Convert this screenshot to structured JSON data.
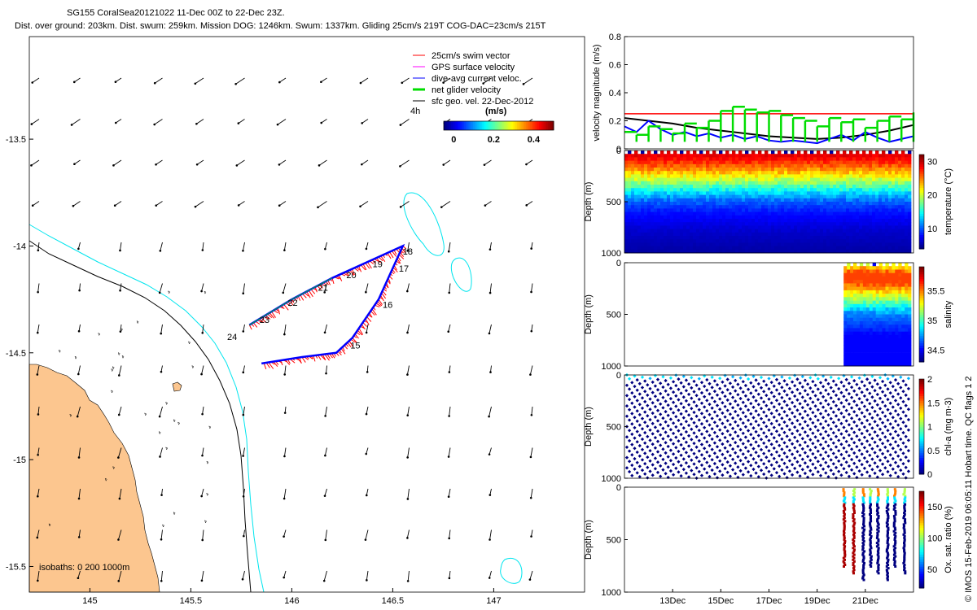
{
  "header": {
    "line1": "SG155 CoralSea20121022 11-Dec 00Z to 22-Dec 23Z.",
    "line2": "Dist. over ground: 203km. Dist. swum: 259km. Mission DOG: 1246km. Swum: 1337km. Gliding 25cm/s 219T COG-DAC=23cm/s 215T"
  },
  "side_note": "© IMOS 15-Feb-2019 06:05:11 Hobart time. QC flags 1  2",
  "colors": {
    "land": "#fcc68f",
    "isobath_shallow": "#00e5ee",
    "isobath_deep": "#000000",
    "swim_vector": "#ff0000",
    "gps_velocity": "#ff00ff",
    "dive_avg": "#0000ff",
    "net_velocity": "#00dd00",
    "geo_velocity": "#000000"
  },
  "chart_data": [
    {
      "type": "scatter",
      "id": "map",
      "title": "SG155 track map",
      "xlabel": "",
      "ylabel": "",
      "xlim": [
        144.7,
        147.45
      ],
      "ylim": [
        -15.62,
        -13.02
      ],
      "xticks": [
        "145",
        "145.5",
        "146",
        "146.5",
        "147"
      ],
      "xtick_values": [
        145,
        145.5,
        146,
        146.5,
        147
      ],
      "yticks": [
        "-13.5",
        "-14",
        "-14.5",
        "-15",
        "-15.5"
      ],
      "ytick_values": [
        -13.5,
        -14,
        -14.5,
        -15,
        -15.5
      ],
      "legend": [
        "25cm/s swim vector",
        "GPS surface velocity",
        "dive-avg current veloc.",
        "net glider velocity",
        "sfc geo. vel. 22-Dec-2012"
      ],
      "legend_position": "top-right",
      "legend_time": "4h",
      "colorbar": {
        "label": "(m/s)",
        "ticks": [
          "0",
          "0.2",
          "0.4"
        ],
        "tick_values": [
          0,
          0.2,
          0.4
        ],
        "range": [
          -0.05,
          0.5
        ]
      },
      "isobaths_label": "isobaths: 0   200  1000m",
      "track": [
        {
          "lon": 145.79,
          "lat": -14.37
        },
        {
          "lon": 146.0,
          "lat": -14.25
        },
        {
          "lon": 146.2,
          "lat": -14.15
        },
        {
          "lon": 146.55,
          "lat": -14.0
        },
        {
          "lon": 146.43,
          "lat": -14.25
        },
        {
          "lon": 146.3,
          "lat": -14.43
        },
        {
          "lon": 146.22,
          "lat": -14.5
        },
        {
          "lon": 146.05,
          "lat": -14.52
        },
        {
          "lon": 145.85,
          "lat": -14.55
        }
      ],
      "day_labels": [
        {
          "label": "15",
          "lon": 146.29,
          "lat": -14.48
        },
        {
          "label": "16",
          "lon": 146.45,
          "lat": -14.29
        },
        {
          "label": "17",
          "lon": 146.53,
          "lat": -14.12
        },
        {
          "label": "18",
          "lon": 146.55,
          "lat": -14.04
        },
        {
          "label": "19",
          "lon": 146.4,
          "lat": -14.1
        },
        {
          "label": "20",
          "lon": 146.27,
          "lat": -14.15
        },
        {
          "label": "21",
          "lon": 146.13,
          "lat": -14.21
        },
        {
          "label": "22",
          "lon": 145.98,
          "lat": -14.28
        },
        {
          "label": "23",
          "lon": 145.84,
          "lat": -14.36
        },
        {
          "label": "24",
          "lon": 145.68,
          "lat": -14.44
        }
      ]
    },
    {
      "type": "line",
      "id": "velocity",
      "ylabel": "velocity magnitude (m/s)",
      "ylim": [
        0,
        0.8
      ],
      "yticks": [
        "0",
        "0.2",
        "0.4",
        "0.6",
        "0.8"
      ],
      "ytick_values": [
        0,
        0.2,
        0.4,
        0.6,
        0.8
      ],
      "xlim": [
        11,
        23
      ],
      "series": [
        {
          "name": "25cm/s swim vector",
          "color": "#ff0000",
          "x": [
            11,
            23
          ],
          "y": [
            0.25,
            0.25
          ]
        },
        {
          "name": "sfc geo. vel.",
          "color": "#000000",
          "x": [
            11,
            12,
            13,
            14,
            15,
            16,
            17,
            18,
            19,
            20,
            21,
            22,
            23
          ],
          "y": [
            0.22,
            0.2,
            0.18,
            0.15,
            0.13,
            0.11,
            0.09,
            0.08,
            0.07,
            0.08,
            0.1,
            0.13,
            0.17
          ]
        },
        {
          "name": "dive-avg current veloc.",
          "color": "#0000ff",
          "x": [
            11,
            11.5,
            12,
            12.5,
            13,
            13.5,
            14,
            14.5,
            15,
            15.5,
            16,
            16.5,
            17,
            17.5,
            18,
            18.5,
            19,
            19.5,
            20,
            20.5,
            21,
            21.5,
            22,
            22.5,
            23
          ],
          "y": [
            0.16,
            0.12,
            0.2,
            0.14,
            0.1,
            0.12,
            0.09,
            0.11,
            0.08,
            0.1,
            0.07,
            0.09,
            0.06,
            0.05,
            0.06,
            0.05,
            0.04,
            0.07,
            0.1,
            0.06,
            0.12,
            0.08,
            0.05,
            0.07,
            0.09
          ]
        },
        {
          "name": "net glider velocity",
          "color": "#00dd00",
          "x": [
            11,
            11.5,
            12,
            12.5,
            13,
            13.5,
            14,
            14.5,
            15,
            15.5,
            16,
            16.5,
            17,
            17.5,
            18,
            18.5,
            19,
            19.5,
            20,
            20.5,
            21,
            21.5,
            22,
            22.5,
            23
          ],
          "y": [
            0.12,
            0.1,
            0.16,
            0.14,
            0.11,
            0.18,
            0.15,
            0.2,
            0.27,
            0.3,
            0.28,
            0.26,
            0.27,
            0.24,
            0.22,
            0.2,
            0.16,
            0.22,
            0.19,
            0.21,
            0.15,
            0.2,
            0.23,
            0.21,
            0.26
          ]
        }
      ]
    },
    {
      "type": "heatmap",
      "id": "temperature",
      "ylabel": "Depth (m)",
      "colorbar_label": "temperature (°C)",
      "ylim": [
        0,
        1000
      ],
      "yticks": [
        "0",
        "500",
        "1000"
      ],
      "ytick_values": [
        0,
        500,
        1000
      ],
      "cticks": [
        "10",
        "20",
        "30"
      ],
      "ctick_values": [
        10,
        20,
        30
      ],
      "crange": [
        4,
        32
      ],
      "xlim": [
        11,
        23
      ],
      "data_start": 11,
      "profiles": [
        {
          "depth": 0,
          "value": 30
        },
        {
          "depth": 100,
          "value": 28
        },
        {
          "depth": 200,
          "value": 24
        },
        {
          "depth": 300,
          "value": 19
        },
        {
          "depth": 400,
          "value": 14
        },
        {
          "depth": 500,
          "value": 10
        },
        {
          "depth": 600,
          "value": 8
        },
        {
          "depth": 800,
          "value": 6
        },
        {
          "depth": 1000,
          "value": 5
        }
      ]
    },
    {
      "type": "heatmap",
      "id": "salinity",
      "ylabel": "Depth (m)",
      "colorbar_label": "salinity",
      "ylim": [
        0,
        1000
      ],
      "yticks": [
        "0",
        "500",
        "1000"
      ],
      "ytick_values": [
        0,
        500,
        1000
      ],
      "cticks": [
        "34.5",
        "35",
        "35.5"
      ],
      "ctick_values": [
        34.5,
        35,
        35.5
      ],
      "crange": [
        34.3,
        35.9
      ],
      "xlim": [
        11,
        23
      ],
      "data_start": 20.1,
      "profiles": [
        {
          "depth": 0,
          "value": 35.2
        },
        {
          "depth": 100,
          "value": 35.6
        },
        {
          "depth": 200,
          "value": 35.6
        },
        {
          "depth": 300,
          "value": 35.3
        },
        {
          "depth": 400,
          "value": 35.0
        },
        {
          "depth": 500,
          "value": 34.7
        },
        {
          "depth": 700,
          "value": 34.5
        },
        {
          "depth": 1000,
          "value": 34.5
        }
      ]
    },
    {
      "type": "scatter",
      "id": "chla",
      "ylabel": "Depth (m)",
      "colorbar_label": "chl-a (mg m-3)",
      "ylim": [
        0,
        1000
      ],
      "yticks": [
        "0",
        "500",
        "1000"
      ],
      "ytick_values": [
        0,
        500,
        1000
      ],
      "cticks": [
        "0",
        "0.5",
        "1",
        "1.5",
        "2"
      ],
      "ctick_values": [
        0,
        0.5,
        1,
        1.5,
        2
      ],
      "crange": [
        0,
        2
      ],
      "xlim": [
        11,
        23
      ],
      "data_start": 11
    },
    {
      "type": "scatter",
      "id": "oxygen",
      "ylabel": "Depth (m)",
      "colorbar_label": "Ox. sat. ratio (%)",
      "ylim": [
        0,
        1000
      ],
      "yticks": [
        "0",
        "500",
        "1000"
      ],
      "ytick_values": [
        0,
        500,
        1000
      ],
      "cticks": [
        "50",
        "100",
        "150"
      ],
      "ctick_values": [
        50,
        100,
        150
      ],
      "crange": [
        20,
        175
      ],
      "xlim": [
        11,
        23
      ],
      "xticks": [
        "13Dec",
        "15Dec",
        "17Dec",
        "19Dec",
        "21Dec"
      ],
      "xtick_values": [
        13,
        15,
        17,
        19,
        21
      ],
      "data_start": 20.1
    }
  ]
}
